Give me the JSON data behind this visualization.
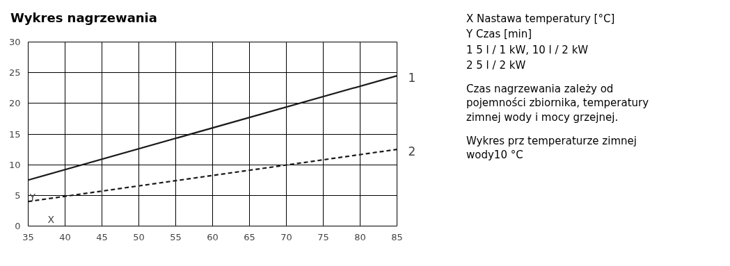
{
  "chart_data": {
    "type": "line",
    "title": "Wykres nagrzewania",
    "xlabel": "X",
    "ylabel": "Y",
    "x": [
      35,
      85
    ],
    "series": [
      {
        "name": "1",
        "color": "#1a1a1a",
        "values": [
          7.5,
          24.5
        ],
        "line_style": "solid"
      },
      {
        "name": "2",
        "color": "#1a1a1a",
        "values": [
          4,
          12.5
        ],
        "line_style": "dashed"
      }
    ],
    "xlim": [
      35,
      85
    ],
    "ylim": [
      0,
      30
    ],
    "xticks": [
      35,
      40,
      45,
      50,
      55,
      60,
      65,
      70,
      75,
      80,
      85
    ],
    "yticks": [
      0,
      5,
      10,
      15,
      20,
      25,
      30
    ],
    "grid": true,
    "marker": "none",
    "annotations": [
      "X  Nastawa temperatury [°C]",
      "Y  Czas [min]",
      "1  5 l / 1 kW, 10 l / 2 kW",
      "2  5 l / 2 kW",
      "Czas nagrzewania zależy od pojemności zbiornika, temperatury zimnej wody i mocy grzejnej.",
      "Wykres prz temperaturze zimnej wody10 °C"
    ]
  }
}
